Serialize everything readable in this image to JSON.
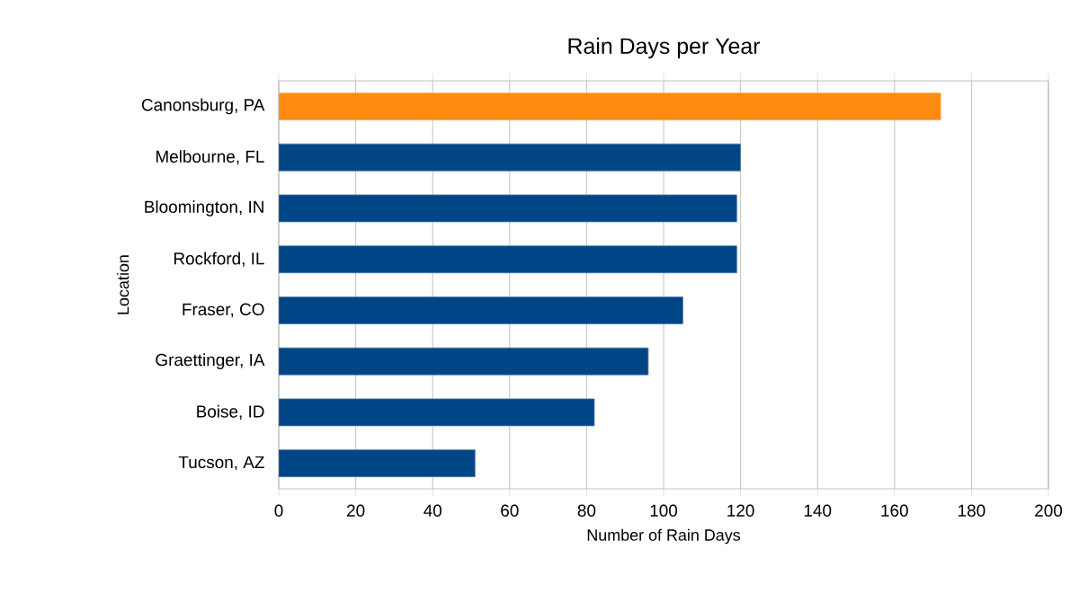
{
  "chart_data": {
    "type": "bar",
    "orientation": "horizontal",
    "title": "Rain Days per Year",
    "xlabel": "Number of Rain Days",
    "ylabel": "Location",
    "categories": [
      "Canonsburg, PA",
      "Melbourne, FL",
      "Bloomington, IN",
      "Rockford, IL",
      "Fraser, CO",
      "Graettinger, IA",
      "Boise, ID",
      "Tucson, AZ"
    ],
    "values": [
      172,
      120,
      119,
      119,
      105,
      96,
      82,
      51
    ],
    "colors": [
      "#ff8a12",
      "#004586",
      "#004586",
      "#004586",
      "#004586",
      "#004586",
      "#004586",
      "#004586"
    ],
    "xlim": [
      0,
      200
    ],
    "xticks": [
      0,
      20,
      40,
      60,
      80,
      100,
      120,
      140,
      160,
      180,
      200
    ],
    "grid": "x"
  }
}
